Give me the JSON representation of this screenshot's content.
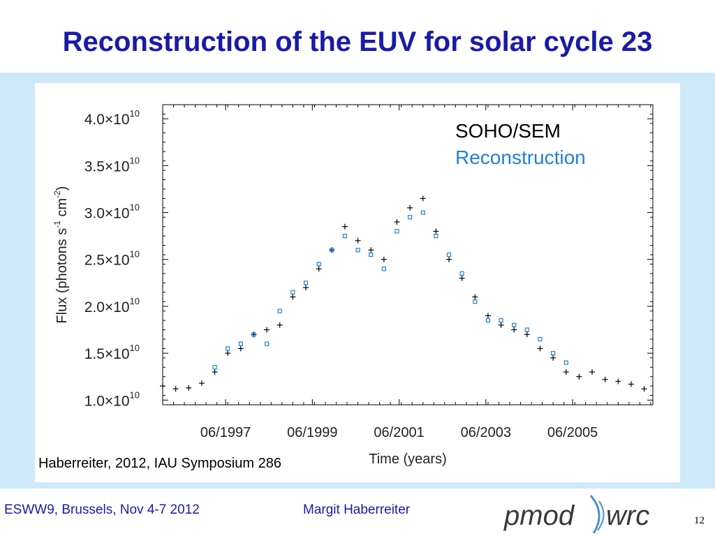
{
  "slide": {
    "title": "Reconstruction of the EUV for solar cycle 23",
    "citation": "Haberreiter, 2012, IAU Symposium 286",
    "footer_left": "ESWW9, Brussels, Nov 4-7 2012",
    "footer_mid": "Margit Haberreiter",
    "logo_text": "pmod wrc",
    "page_number": "12"
  },
  "colors": {
    "title": "#1a1aa8",
    "panel_bg": "#cfe9f9",
    "sem_series": "#000000",
    "reconstruction_series": "#1f7fe0"
  },
  "chart_data": {
    "type": "scatter",
    "xlabel": "Time (years)",
    "ylabel": "Flux (photons s-1 cm-2)",
    "ylabel_parts": {
      "main": "Flux (photons s",
      "sup1": "-1",
      "mid": " cm",
      "sup2": "-2",
      "end": ")"
    },
    "xlim": [
      1996.0,
      2007.3
    ],
    "ylim": [
      9500000000.0,
      41500000000.0
    ],
    "x_ticks": [
      {
        "value": 1997.45,
        "label": "06/1997"
      },
      {
        "value": 1999.45,
        "label": "06/1999"
      },
      {
        "value": 2001.45,
        "label": "06/2001"
      },
      {
        "value": 2003.45,
        "label": "06/2003"
      },
      {
        "value": 2005.45,
        "label": "06/2005"
      }
    ],
    "y_ticks": [
      {
        "value": 10000000000.0,
        "mantissa": "1.0",
        "times": "×10",
        "exp": "10"
      },
      {
        "value": 15000000000.0,
        "mantissa": "1.5",
        "times": "×10",
        "exp": "10"
      },
      {
        "value": 20000000000.0,
        "mantissa": "2.0",
        "times": "×10",
        "exp": "10"
      },
      {
        "value": 25000000000.0,
        "mantissa": "2.5",
        "times": "×10",
        "exp": "10"
      },
      {
        "value": 30000000000.0,
        "mantissa": "3.0",
        "times": "×10",
        "exp": "10"
      },
      {
        "value": 35000000000.0,
        "mantissa": "3.5",
        "times": "×10",
        "exp": "10"
      },
      {
        "value": 40000000000.0,
        "mantissa": "4.0",
        "times": "×10",
        "exp": "10"
      }
    ],
    "legend_position": "top-right",
    "series": [
      {
        "name": "SOHO/SEM",
        "marker": "plus",
        "color": "#000000",
        "x": [
          1996.0,
          1996.3,
          1996.6,
          1996.9,
          1997.2,
          1997.5,
          1997.8,
          1998.1,
          1998.4,
          1998.7,
          1999.0,
          1999.3,
          1999.6,
          1999.9,
          2000.2,
          2000.5,
          2000.8,
          2001.1,
          2001.4,
          2001.7,
          2002.0,
          2002.3,
          2002.6,
          2002.9,
          2003.2,
          2003.5,
          2003.8,
          2004.1,
          2004.4,
          2004.7,
          2005.0,
          2005.3,
          2005.6,
          2005.9,
          2006.2,
          2006.5,
          2006.8,
          2007.1
        ],
        "y": [
          11500000000.0,
          11200000000.0,
          11300000000.0,
          11800000000.0,
          13000000000.0,
          15000000000.0,
          15500000000.0,
          17000000000.0,
          17500000000.0,
          18000000000.0,
          21000000000.0,
          22000000000.0,
          24000000000.0,
          26000000000.0,
          28500000000.0,
          27000000000.0,
          26000000000.0,
          25000000000.0,
          29000000000.0,
          30500000000.0,
          31500000000.0,
          28000000000.0,
          25000000000.0,
          23000000000.0,
          21000000000.0,
          19000000000.0,
          18000000000.0,
          17500000000.0,
          17000000000.0,
          15500000000.0,
          14500000000.0,
          13000000000.0,
          12500000000.0,
          13000000000.0,
          12200000000.0,
          12000000000.0,
          11700000000.0,
          11200000000.0
        ]
      },
      {
        "name": "Reconstruction",
        "marker": "square",
        "color": "#1f7fe0",
        "x": [
          1997.2,
          1997.5,
          1997.8,
          1998.1,
          1998.4,
          1998.7,
          1999.0,
          1999.3,
          1999.6,
          1999.9,
          2000.2,
          2000.5,
          2000.8,
          2001.1,
          2001.4,
          2001.7,
          2002.0,
          2002.3,
          2002.6,
          2002.9,
          2003.2,
          2003.5,
          2003.8,
          2004.1,
          2004.4,
          2004.7,
          2005.0,
          2005.3
        ],
        "y": [
          13500000000.0,
          15500000000.0,
          16000000000.0,
          17000000000.0,
          16000000000.0,
          19500000000.0,
          21500000000.0,
          22500000000.0,
          24500000000.0,
          26000000000.0,
          27500000000.0,
          26000000000.0,
          25500000000.0,
          24000000000.0,
          28000000000.0,
          29500000000.0,
          30000000000.0,
          27500000000.0,
          25500000000.0,
          23500000000.0,
          20500000000.0,
          18500000000.0,
          18500000000.0,
          18000000000.0,
          17500000000.0,
          16500000000.0,
          15000000000.0,
          14000000000.0
        ]
      }
    ]
  }
}
